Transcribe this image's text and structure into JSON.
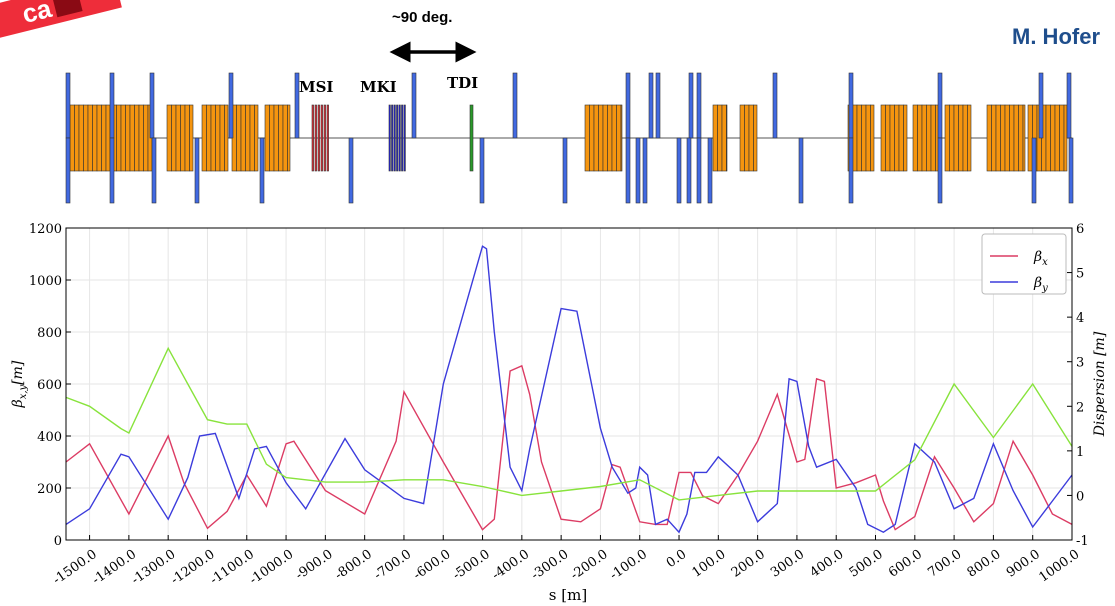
{
  "header": {
    "stamp_text": "ca",
    "author": "M. Hofer",
    "phase_advance": "~90 deg."
  },
  "lattice": {
    "labels": [
      "MSI",
      "MKI",
      "TDI"
    ],
    "colors": {
      "dipole": "#f5950f",
      "quad": "#4169e1",
      "msi": "#f0303a",
      "mki": "#2222dd",
      "tdi": "#2a9a2a"
    }
  },
  "chart_data": {
    "type": "line",
    "xlabel": "s [m]",
    "ylabel_left": "β_{x,y}[m]",
    "ylabel_right": "Dispersion [m]",
    "xlim": [
      -1560,
      1000
    ],
    "ylim_left": [
      0,
      1200
    ],
    "ylim_right": [
      -1,
      6
    ],
    "xticks": [
      -1500,
      -1400,
      -1300,
      -1200,
      -1100,
      -1000,
      -900,
      -800,
      -700,
      -600,
      -500,
      -400,
      -300,
      -200,
      -100,
      0,
      100,
      200,
      300,
      400,
      500,
      600,
      700,
      800,
      900,
      1000
    ],
    "xtick_labels": [
      "-1500.0",
      "-1400.0",
      "-1300.0",
      "-1200.0",
      "-1100.0",
      "-1000.0",
      "-900.0",
      "-800.0",
      "-700.0",
      "-600.0",
      "-500.0",
      "-400.0",
      "-300.0",
      "-200.0",
      "-100.0",
      "0.0",
      "100.0",
      "200.0",
      "300.0",
      "400.0",
      "500.0",
      "600.0",
      "700.0",
      "800.0",
      "900.0",
      "1000.0"
    ],
    "yticks_left": [
      0,
      200,
      400,
      600,
      800,
      1000,
      1200
    ],
    "yticks_right": [
      -1,
      0,
      1,
      2,
      3,
      4,
      5,
      6
    ],
    "grid": true,
    "legend_position": "top-right",
    "series": [
      {
        "name": "β_x",
        "axis": "left",
        "color": "#dc3c64",
        "x": [
          -1560,
          -1500,
          -1400,
          -1300,
          -1260,
          -1200,
          -1150,
          -1100,
          -1050,
          -1000,
          -980,
          -900,
          -800,
          -720,
          -700,
          -600,
          -500,
          -470,
          -430,
          -400,
          -380,
          -350,
          -300,
          -250,
          -200,
          -170,
          -150,
          -100,
          -60,
          -30,
          0,
          30,
          60,
          100,
          150,
          200,
          250,
          300,
          320,
          350,
          370,
          400,
          450,
          500,
          520,
          550,
          600,
          650,
          700,
          750,
          800,
          850,
          900,
          950,
          1000
        ],
        "y": [
          300,
          370,
          100,
          400,
          220,
          45,
          110,
          250,
          130,
          370,
          380,
          190,
          100,
          380,
          570,
          300,
          40,
          80,
          650,
          670,
          560,
          300,
          80,
          70,
          120,
          290,
          280,
          70,
          60,
          60,
          260,
          260,
          170,
          140,
          250,
          380,
          560,
          300,
          310,
          620,
          610,
          200,
          220,
          250,
          150,
          40,
          90,
          320,
          200,
          70,
          140,
          380,
          250,
          100,
          60
        ]
      },
      {
        "name": "β_y",
        "axis": "left",
        "color": "#3c3cdc",
        "x": [
          -1560,
          -1500,
          -1420,
          -1400,
          -1300,
          -1250,
          -1220,
          -1180,
          -1120,
          -1080,
          -1050,
          -1000,
          -950,
          -850,
          -800,
          -700,
          -650,
          -600,
          -500,
          -490,
          -470,
          -430,
          -400,
          -380,
          -300,
          -260,
          -200,
          -170,
          -130,
          -110,
          -100,
          -80,
          -60,
          -30,
          0,
          20,
          40,
          70,
          100,
          150,
          200,
          250,
          280,
          300,
          330,
          350,
          400,
          450,
          480,
          520,
          550,
          600,
          650,
          700,
          750,
          800,
          850,
          900,
          950,
          1000
        ],
        "y": [
          60,
          120,
          330,
          320,
          80,
          240,
          400,
          410,
          160,
          350,
          360,
          220,
          120,
          390,
          270,
          160,
          140,
          600,
          1130,
          1120,
          800,
          280,
          190,
          350,
          890,
          880,
          430,
          280,
          180,
          200,
          280,
          250,
          60,
          80,
          30,
          100,
          260,
          260,
          320,
          250,
          70,
          140,
          620,
          610,
          360,
          280,
          310,
          200,
          60,
          30,
          60,
          370,
          300,
          120,
          160,
          370,
          190,
          50,
          150,
          250
        ]
      },
      {
        "name": "",
        "axis": "right",
        "color": "#88e33c",
        "x": [
          -1560,
          -1500,
          -1420,
          -1400,
          -1300,
          -1250,
          -1200,
          -1150,
          -1100,
          -1050,
          -1000,
          -900,
          -800,
          -700,
          -600,
          -500,
          -400,
          -300,
          -200,
          -100,
          0,
          100,
          200,
          300,
          400,
          500,
          600,
          700,
          800,
          900,
          1000
        ],
        "y": [
          2.2,
          2.0,
          1.5,
          1.4,
          3.3,
          2.5,
          1.7,
          1.6,
          1.6,
          0.7,
          0.4,
          0.3,
          0.3,
          0.35,
          0.35,
          0.2,
          0.0,
          0.1,
          0.2,
          0.35,
          -0.1,
          0.0,
          0.1,
          0.1,
          0.1,
          0.1,
          0.8,
          2.5,
          1.3,
          2.5,
          1.1
        ]
      }
    ]
  }
}
